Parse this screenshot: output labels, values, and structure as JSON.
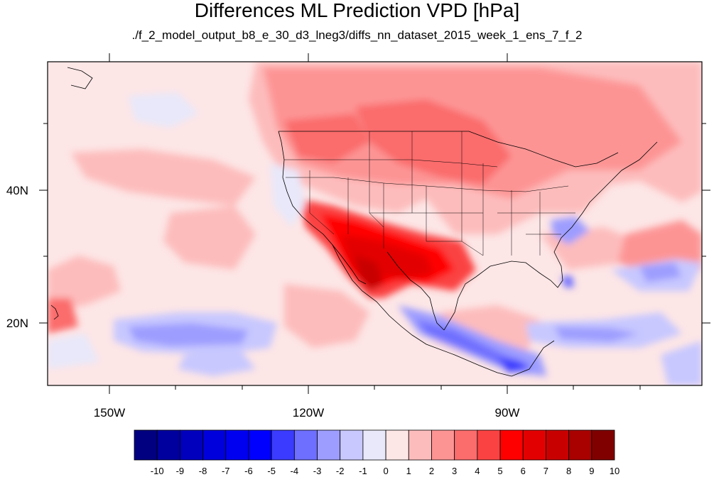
{
  "title": "Differences ML Prediction VPD [hPa]",
  "subtitle": "./f_2_model_output_b8_e_30_d3_lneg3/diffs_nn_dataset_2015_week_1_ens_7_f_2",
  "map": {
    "lon_labels": [
      "150W",
      "120W",
      "90W"
    ],
    "lat_labels": [
      "40N",
      "20N"
    ],
    "lon_values": [
      -150,
      -120,
      -90
    ],
    "lat_values": [
      40,
      20
    ]
  },
  "colorbar": {
    "labels": [
      "-10",
      "-9",
      "-8",
      "-7",
      "-6",
      "-5",
      "-4",
      "-3",
      "-2",
      "-1",
      "0",
      "1",
      "2",
      "3",
      "4",
      "5",
      "6",
      "7",
      "8",
      "9",
      "10"
    ],
    "colors": [
      "#000080",
      "#00009e",
      "#0000bd",
      "#0000dc",
      "#0000f0",
      "#0000ff",
      "#3b3bff",
      "#6e6eff",
      "#9d9dff",
      "#c8c8ff",
      "#e8e8fa",
      "#fde6e6",
      "#fdbcbc",
      "#fd9494",
      "#fb6c6c",
      "#fb4242",
      "#ff0000",
      "#e30000",
      "#c80000",
      "#a90000",
      "#800000"
    ]
  }
}
